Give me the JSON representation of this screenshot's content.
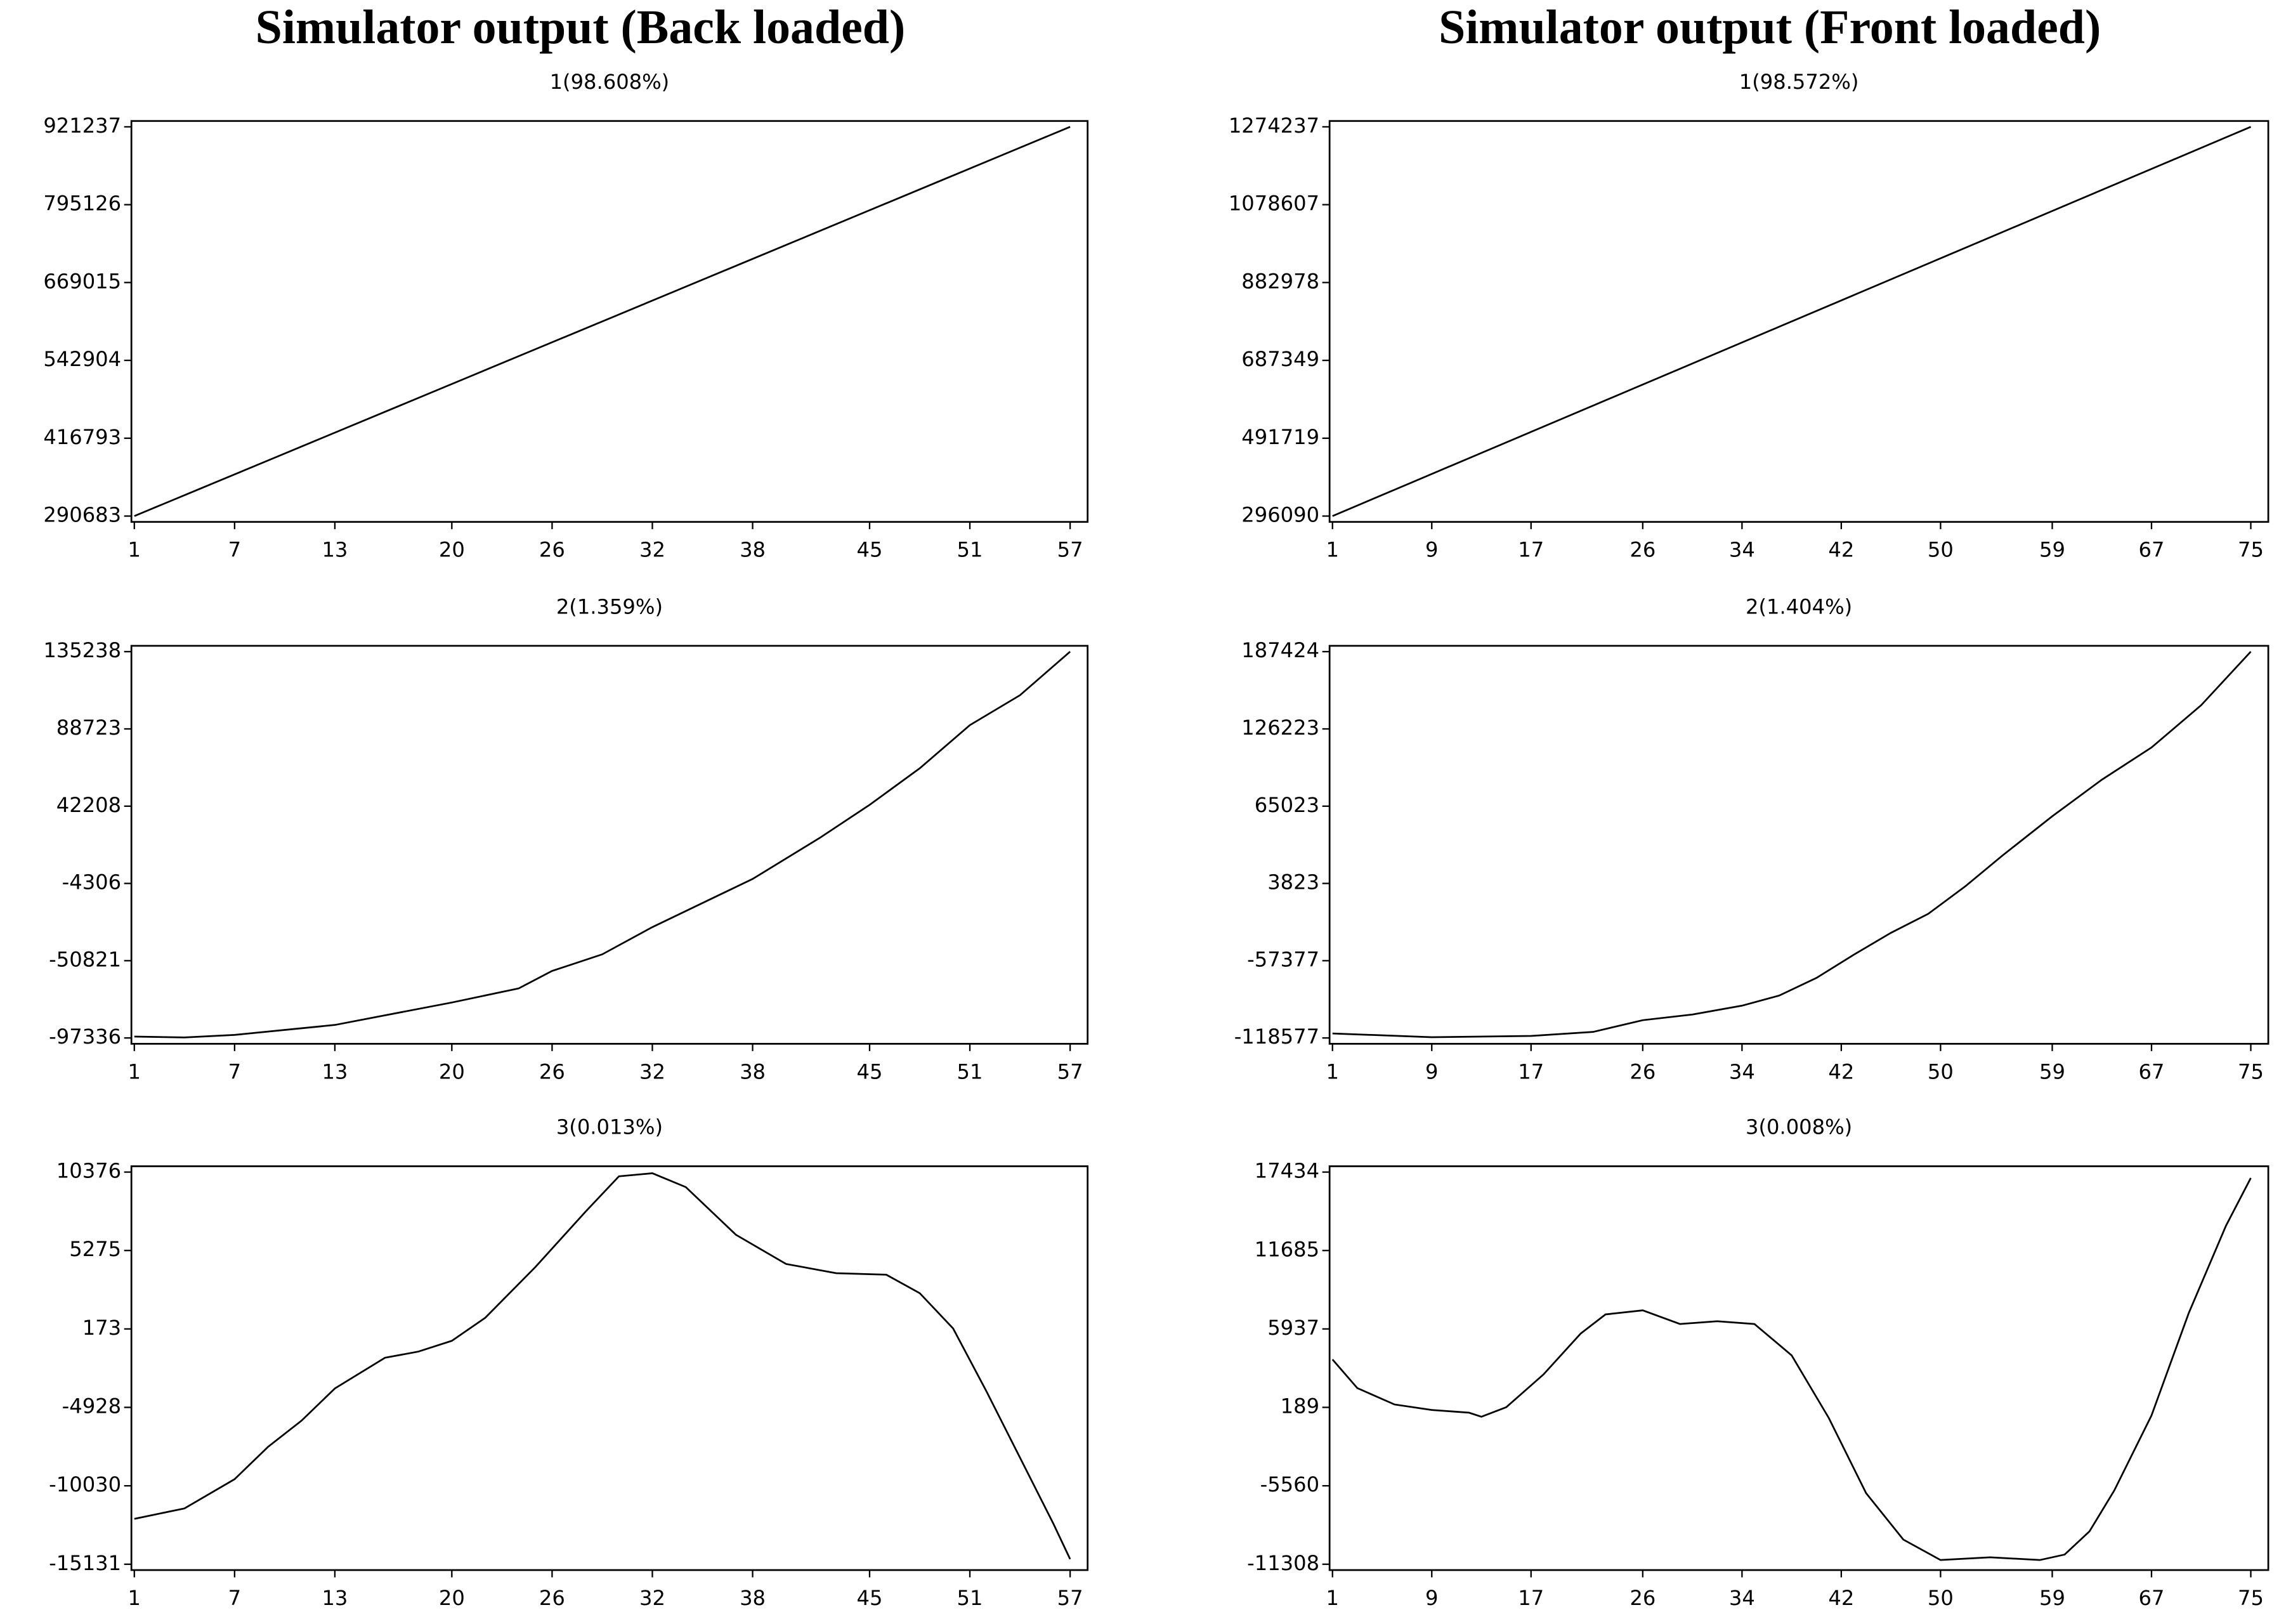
{
  "chart_data": [
    {
      "type": "line",
      "title": "Simulator output (Back loaded)",
      "subtitle": "1(98.608%)",
      "x": [
        1,
        5,
        9,
        13,
        17,
        21,
        25,
        29,
        33,
        37,
        41,
        45,
        49,
        53,
        57
      ],
      "values": [
        290683,
        335723,
        380763,
        425803,
        470843,
        515883,
        560923,
        605963,
        651003,
        696043,
        741083,
        786123,
        831163,
        876203,
        921237
      ],
      "xlim": [
        1,
        57
      ],
      "xticks": [
        1,
        7,
        13,
        20,
        26,
        32,
        38,
        45,
        51,
        57
      ],
      "ylim": [
        290683,
        921237
      ],
      "yticks": [
        290683,
        416793,
        542904,
        669015,
        795126,
        921237
      ],
      "color": "#000000"
    },
    {
      "type": "line",
      "subtitle": "2(1.359%)",
      "x": [
        1,
        4,
        7,
        13,
        20,
        24,
        26,
        29,
        32,
        38,
        42,
        45,
        48,
        51,
        54,
        57
      ],
      "values": [
        -96500,
        -97000,
        -95500,
        -89500,
        -76000,
        -67500,
        -57000,
        -47000,
        -30600,
        -1600,
        23000,
        43000,
        65000,
        91000,
        109000,
        135238
      ],
      "xlim": [
        1,
        57
      ],
      "xticks": [
        1,
        7,
        13,
        20,
        26,
        32,
        38,
        45,
        51,
        57
      ],
      "ylim": [
        -97336,
        135238
      ],
      "yticks": [
        -97336,
        -50821,
        -4306,
        42208,
        88723,
        135238
      ],
      "color": "#000000"
    },
    {
      "type": "line",
      "subtitle": "3(0.013%)",
      "x": [
        1,
        4,
        7,
        9,
        11,
        13,
        16,
        18,
        20,
        22,
        25,
        28,
        30,
        32,
        34,
        37,
        40,
        43,
        46,
        48,
        50,
        52,
        54,
        56,
        57
      ],
      "values": [
        -12180,
        -11500,
        -9600,
        -7500,
        -5800,
        -3700,
        -1700,
        -1300,
        -600,
        900,
        4200,
        7800,
        10100,
        10300,
        9400,
        6300,
        4400,
        3800,
        3700,
        2500,
        200,
        -3900,
        -8200,
        -12500,
        -14800
      ],
      "xlim": [
        1,
        57
      ],
      "xticks": [
        1,
        7,
        13,
        20,
        26,
        32,
        38,
        45,
        51,
        57
      ],
      "ylim": [
        -15131,
        10376
      ],
      "yticks": [
        -15131,
        -10030,
        -4928,
        173,
        5275,
        10376
      ],
      "color": "#000000"
    },
    {
      "type": "line",
      "title": "Simulator output (Front loaded)",
      "subtitle": "1(98.572%)",
      "x": [
        1,
        7,
        13,
        19,
        25,
        31,
        37,
        43,
        49,
        55,
        61,
        67,
        73,
        75
      ],
      "values": [
        296090,
        375399,
        454708,
        534017,
        613326,
        692635,
        771944,
        851253,
        930562,
        1009871,
        1089180,
        1168489,
        1247798,
        1274237
      ],
      "xlim": [
        1,
        75
      ],
      "xticks": [
        1,
        9,
        17,
        26,
        34,
        42,
        50,
        59,
        67,
        75
      ],
      "ylim": [
        296090,
        1274237
      ],
      "yticks": [
        296090,
        491719,
        687349,
        882978,
        1078607,
        1274237
      ],
      "color": "#000000"
    },
    {
      "type": "line",
      "subtitle": "2(1.404%)",
      "x": [
        1,
        9,
        17,
        22,
        26,
        30,
        34,
        37,
        40,
        43,
        46,
        49,
        52,
        55,
        59,
        63,
        67,
        71,
        75
      ],
      "values": [
        -115000,
        -118000,
        -117000,
        -113800,
        -104500,
        -100000,
        -93000,
        -85000,
        -71000,
        -52700,
        -35300,
        -20300,
        1600,
        26000,
        57000,
        86000,
        111500,
        145000,
        187424
      ],
      "xlim": [
        1,
        75
      ],
      "xticks": [
        1,
        9,
        17,
        26,
        34,
        42,
        50,
        59,
        67,
        75
      ],
      "ylim": [
        -118577,
        187424
      ],
      "yticks": [
        -118577,
        -57377,
        3823,
        65023,
        126223,
        187424
      ],
      "color": "#000000"
    },
    {
      "type": "line",
      "subtitle": "3(0.008%)",
      "x": [
        1,
        3,
        6,
        9,
        12,
        13,
        15,
        18,
        21,
        23,
        26,
        29,
        32,
        35,
        38,
        41,
        44,
        47,
        50,
        54,
        58,
        60,
        62,
        64,
        67,
        70,
        73,
        75
      ],
      "values": [
        3700,
        1600,
        400,
        0,
        -200,
        -500,
        200,
        2600,
        5600,
        7000,
        7300,
        6300,
        6500,
        6300,
        4000,
        -600,
        -6100,
        -9500,
        -11000,
        -10800,
        -11000,
        -10600,
        -8900,
        -5900,
        -400,
        7100,
        13500,
        17000
      ],
      "xlim": [
        1,
        75
      ],
      "xticks": [
        1,
        9,
        17,
        26,
        34,
        42,
        50,
        59,
        67,
        75
      ],
      "ylim": [
        -11308,
        17434
      ],
      "yticks": [
        -11308,
        -5560,
        189,
        5937,
        11685,
        17434
      ],
      "color": "#000000"
    }
  ]
}
